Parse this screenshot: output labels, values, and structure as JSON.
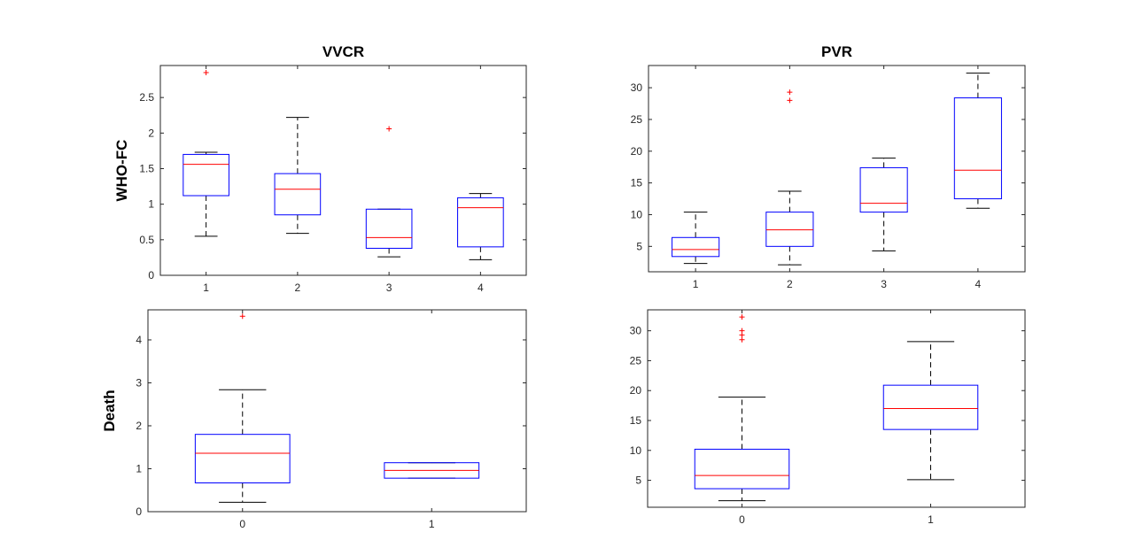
{
  "colors": {
    "box": "#0000ff",
    "median": "#ff0000",
    "whisker": "#000000",
    "outlier": "#ff0000",
    "axes": "#262626"
  },
  "chart_data": [
    {
      "type": "boxplot",
      "title": "VVCR",
      "ylabel": "WHO-FC",
      "xlabel": "",
      "ylim": [
        0,
        2.95
      ],
      "yticks": [
        0,
        0.5,
        1,
        1.5,
        2,
        2.5
      ],
      "ytick_labels": [
        "0",
        "0.5",
        "1",
        "1.5",
        "2",
        "2.5"
      ],
      "categories": [
        "1",
        "2",
        "3",
        "4"
      ],
      "boxes": [
        {
          "category": "1",
          "whisker_low": 0.55,
          "q1": 1.12,
          "median": 1.56,
          "q3": 1.7,
          "whisker_high": 1.73,
          "outliers": [
            2.85
          ]
        },
        {
          "category": "2",
          "whisker_low": 0.59,
          "q1": 0.85,
          "median": 1.21,
          "q3": 1.43,
          "whisker_high": 2.22,
          "outliers": []
        },
        {
          "category": "3",
          "whisker_low": 0.26,
          "q1": 0.38,
          "median": 0.53,
          "q3": 0.93,
          "whisker_high": 0.93,
          "outliers": [
            2.06
          ]
        },
        {
          "category": "4",
          "whisker_low": 0.22,
          "q1": 0.4,
          "median": 0.95,
          "q3": 1.09,
          "whisker_high": 1.15,
          "outliers": []
        }
      ]
    },
    {
      "type": "boxplot",
      "title": "PVR",
      "ylabel": "",
      "xlabel": "",
      "ylim": [
        1,
        33.5
      ],
      "yticks": [
        5,
        10,
        15,
        20,
        25,
        30
      ],
      "ytick_labels": [
        "5",
        "10",
        "15",
        "20",
        "25",
        "30"
      ],
      "categories": [
        "1",
        "2",
        "3",
        "4"
      ],
      "boxes": [
        {
          "category": "1",
          "whisker_low": 2.3,
          "q1": 3.4,
          "median": 4.5,
          "q3": 6.4,
          "whisker_high": 10.4,
          "outliers": []
        },
        {
          "category": "2",
          "whisker_low": 2.1,
          "q1": 5.0,
          "median": 7.6,
          "q3": 10.4,
          "whisker_high": 13.7,
          "outliers": [
            28.0,
            29.3
          ]
        },
        {
          "category": "3",
          "whisker_low": 4.3,
          "q1": 10.4,
          "median": 11.8,
          "q3": 17.4,
          "whisker_high": 18.9,
          "outliers": []
        },
        {
          "category": "4",
          "whisker_low": 11.0,
          "q1": 12.5,
          "median": 17.0,
          "q3": 28.4,
          "whisker_high": 32.3,
          "outliers": []
        }
      ]
    },
    {
      "type": "boxplot",
      "title": "",
      "ylabel": "Death",
      "xlabel": "",
      "ylim": [
        0,
        4.7
      ],
      "yticks": [
        0,
        1,
        2,
        3,
        4
      ],
      "ytick_labels": [
        "0",
        "1",
        "2",
        "3",
        "4"
      ],
      "categories": [
        "0",
        "1"
      ],
      "boxes": [
        {
          "category": "0",
          "whisker_low": 0.22,
          "q1": 0.67,
          "median": 1.36,
          "q3": 1.8,
          "whisker_high": 2.84,
          "outliers": [
            4.55
          ]
        },
        {
          "category": "1",
          "whisker_low": 0.78,
          "q1": 0.78,
          "median": 0.96,
          "q3": 1.14,
          "whisker_high": 1.14,
          "outliers": []
        }
      ]
    },
    {
      "type": "boxplot",
      "title": "",
      "ylabel": "",
      "xlabel": "",
      "ylim": [
        0.5,
        33.5
      ],
      "yticks": [
        5,
        10,
        15,
        20,
        25,
        30
      ],
      "ytick_labels": [
        "5",
        "10",
        "15",
        "20",
        "25",
        "30"
      ],
      "categories": [
        "0",
        "1"
      ],
      "boxes": [
        {
          "category": "0",
          "whisker_low": 1.6,
          "q1": 3.6,
          "median": 5.8,
          "q3": 10.2,
          "whisker_high": 18.9,
          "outliers": [
            28.5,
            29.3,
            30.0,
            32.3
          ]
        },
        {
          "category": "1",
          "whisker_low": 5.1,
          "q1": 13.5,
          "median": 17.0,
          "q3": 20.9,
          "whisker_high": 28.2,
          "outliers": []
        }
      ]
    }
  ]
}
